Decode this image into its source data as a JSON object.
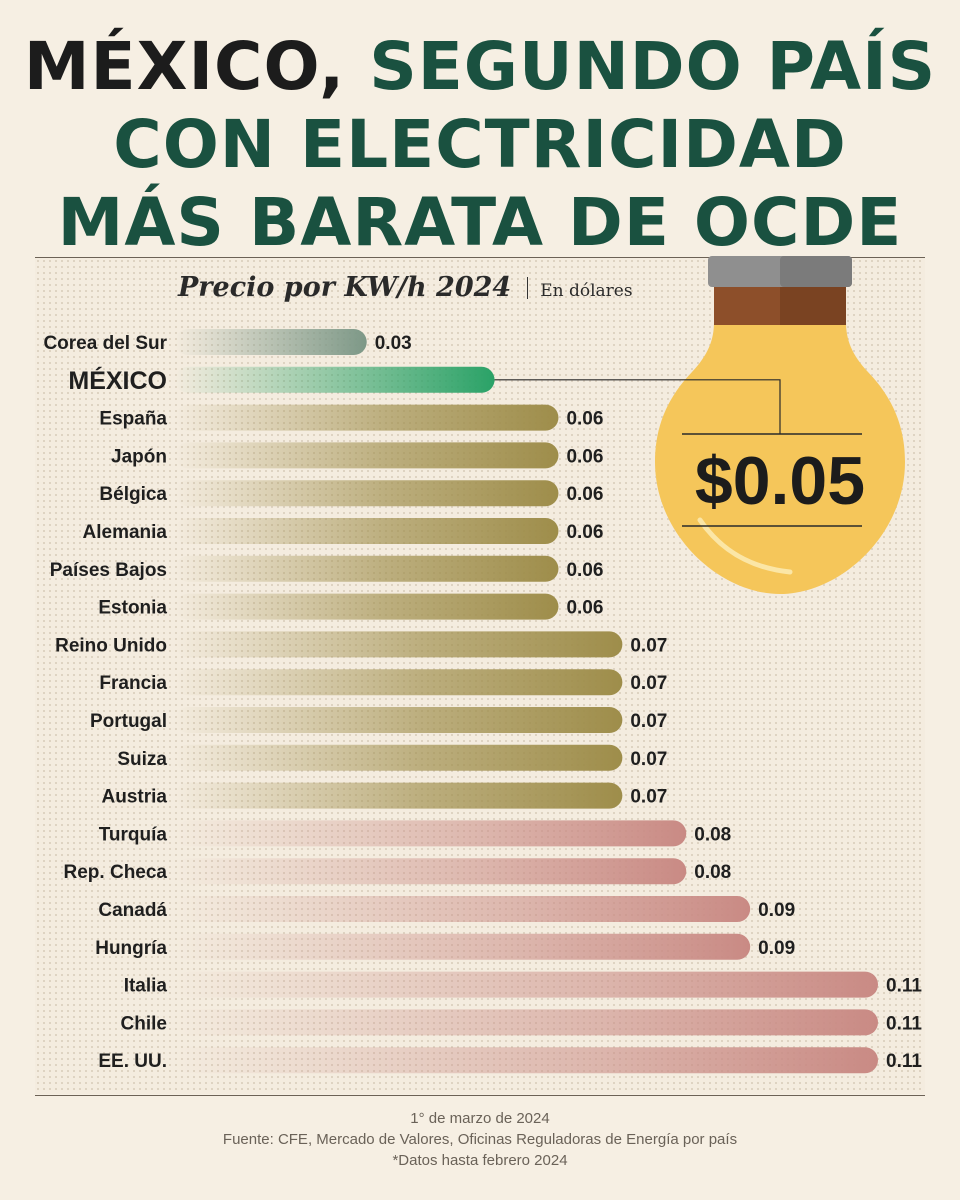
{
  "headline": {
    "part1": "MÉXICO,",
    "part2": "SEGUNDO PAÍS",
    "line2": "CON ELECTRICIDAD",
    "line3": "MÁS BARATA DE OCDE"
  },
  "subtitle": {
    "main": "Precio por KW/h 2024",
    "unit": "En dólares"
  },
  "callout": {
    "value": "$0.05"
  },
  "colors": {
    "green_title": "#1a5140",
    "highlight": "#2aa267",
    "gray": "#7d9887",
    "olive": "#9e8d4a",
    "rose": "#c98a84",
    "bulb": "#f5c65a",
    "bulb_base": "#8d4f2a",
    "bulb_cap": "#8a8a8a"
  },
  "chart_data": {
    "type": "bar",
    "orientation": "horizontal",
    "title": "Precio por KW/h 2024",
    "xlabel": "En dólares",
    "highlight_category": "MÉXICO",
    "categories": [
      "Corea del Sur",
      "MÉXICO",
      "España",
      "Japón",
      "Bélgica",
      "Alemania",
      "Países Bajos",
      "Estonia",
      "Reino Unido",
      "Francia",
      "Portugal",
      "Suiza",
      "Austria",
      "Turquía",
      "Rep. Checa",
      "Canadá",
      "Hungría",
      "Italia",
      "Chile",
      "EE. UU."
    ],
    "values": [
      0.03,
      0.05,
      0.06,
      0.06,
      0.06,
      0.06,
      0.06,
      0.06,
      0.07,
      0.07,
      0.07,
      0.07,
      0.07,
      0.08,
      0.08,
      0.09,
      0.09,
      0.11,
      0.11,
      0.11
    ],
    "value_labels": [
      "0.03",
      "",
      "0.06",
      "0.06",
      "0.06",
      "0.06",
      "0.06",
      "0.06",
      "0.07",
      "0.07",
      "0.07",
      "0.07",
      "0.07",
      "0.08",
      "0.08",
      "0.09",
      "0.09",
      "0.11",
      "0.11",
      "0.11"
    ],
    "xlim": [
      0,
      0.11
    ],
    "grid": false,
    "legend": "none"
  },
  "footer": {
    "date": "1° de marzo de 2024",
    "source": "Fuente: CFE, Mercado de Valores, Oficinas Reguladoras de Energía por país",
    "note": "*Datos hasta febrero 2024"
  }
}
